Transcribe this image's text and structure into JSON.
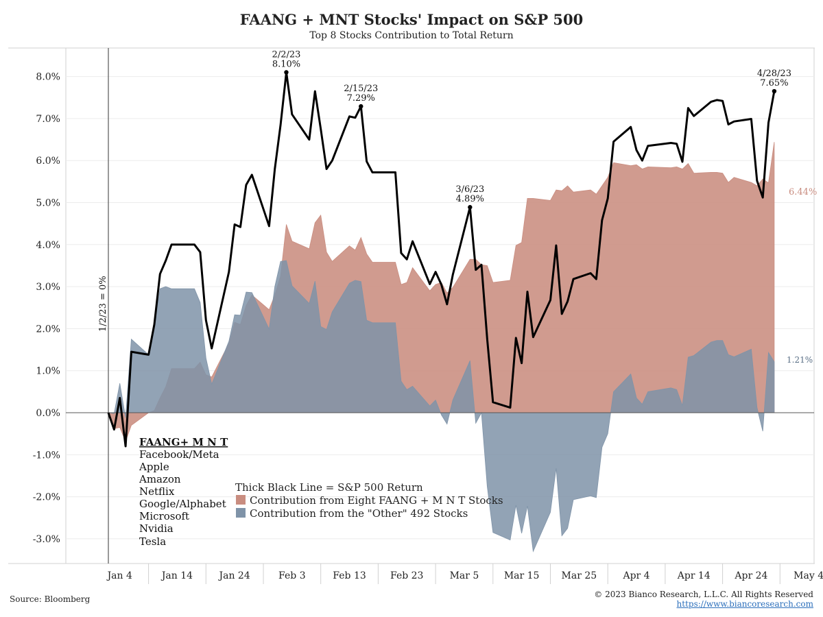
{
  "title": "FAANG + MNT Stocks' Impact on S&P 500",
  "subtitle": "Top 8 Stocks Contribution to Total Return",
  "colors": {
    "faang": "#c98d80",
    "other": "#7f93a8",
    "sp500": "#000000"
  },
  "start_note": "1/2/23 = 0%",
  "stocks_box": {
    "heading": "FAANG+ M N T",
    "items": [
      "Facebook/Meta",
      "Apple",
      "Amazon",
      "Netflix",
      "Google/Alphabet",
      "Microsoft",
      "Nvidia",
      "Tesla"
    ]
  },
  "legend": {
    "line": "Thick Black Line = S&P 500 Return",
    "faang": "Contribution from Eight FAANG + M N T Stocks",
    "other": "Contribution from the \"Other\" 492 Stocks"
  },
  "end_labels": {
    "faang": "6.44%",
    "other": "1.21%"
  },
  "source": "Source: Bloomberg",
  "copyright": "© 2023 Bianco Research, L.L.C. All Rights Reserved",
  "website": "https://www.biancoresearch.com",
  "chart_data": {
    "type": "area",
    "x_ticks": [
      "Jan 4",
      "Jan 14",
      "Jan 24",
      "Feb 3",
      "Feb 13",
      "Feb 23",
      "Mar 5",
      "Mar 15",
      "Mar 25",
      "Apr 4",
      "Apr 14",
      "Apr 24",
      "May 4"
    ],
    "y_ticks": [
      "-3.0%",
      "-2.0%",
      "-1.0%",
      "0.0%",
      "1.0%",
      "2.0%",
      "3.0%",
      "4.0%",
      "5.0%",
      "6.0%",
      "7.0%",
      "8.0%"
    ],
    "ylim": [
      -3.6,
      8.6
    ],
    "x": [
      "1/2/23",
      "1/3/23",
      "1/4/23",
      "1/5/23",
      "1/6/23",
      "1/9/23",
      "1/10/23",
      "1/11/23",
      "1/12/23",
      "1/13/23",
      "1/17/23",
      "1/18/23",
      "1/19/23",
      "1/20/23",
      "1/23/23",
      "1/24/23",
      "1/25/23",
      "1/26/23",
      "1/27/23",
      "1/30/23",
      "1/31/23",
      "2/1/23",
      "2/2/23",
      "2/3/23",
      "2/6/23",
      "2/7/23",
      "2/8/23",
      "2/9/23",
      "2/10/23",
      "2/13/23",
      "2/14/23",
      "2/15/23",
      "2/16/23",
      "2/17/23",
      "2/21/23",
      "2/22/23",
      "2/23/23",
      "2/24/23",
      "2/27/23",
      "2/28/23",
      "3/1/23",
      "3/2/23",
      "3/3/23",
      "3/6/23",
      "3/7/23",
      "3/8/23",
      "3/9/23",
      "3/10/23",
      "3/13/23",
      "3/14/23",
      "3/15/23",
      "3/16/23",
      "3/17/23",
      "3/20/23",
      "3/21/23",
      "3/22/23",
      "3/23/23",
      "3/24/23",
      "3/27/23",
      "3/28/23",
      "3/29/23",
      "3/30/23",
      "3/31/23",
      "4/3/23",
      "4/4/23",
      "4/5/23",
      "4/6/23",
      "4/10/23",
      "4/11/23",
      "4/12/23",
      "4/13/23",
      "4/14/23",
      "4/17/23",
      "4/18/23",
      "4/19/23",
      "4/20/23",
      "4/21/23",
      "4/24/23",
      "4/25/23",
      "4/26/23",
      "4/27/23",
      "4/28/23"
    ],
    "series": [
      {
        "name": "Thick Black Line = S&P 500 Return",
        "values": [
          0.0,
          -0.4,
          0.35,
          -0.8,
          1.45,
          1.38,
          2.1,
          3.3,
          3.62,
          4.0,
          4.0,
          3.82,
          2.2,
          1.53,
          3.35,
          4.48,
          4.42,
          5.42,
          5.66,
          4.44,
          5.8,
          6.85,
          8.1,
          7.1,
          6.5,
          7.65,
          6.75,
          5.8,
          6.0,
          7.05,
          7.02,
          7.29,
          5.98,
          5.72,
          5.72,
          3.8,
          3.65,
          4.08,
          3.06,
          3.35,
          3.05,
          2.58,
          3.28,
          4.89,
          3.4,
          3.52,
          1.75,
          0.25,
          0.12,
          1.78,
          1.18,
          2.88,
          1.8,
          2.68,
          3.98,
          2.35,
          2.65,
          3.18,
          3.32,
          3.18,
          4.58,
          5.1,
          6.45,
          6.8,
          6.25,
          6.0,
          6.35,
          6.42,
          6.4,
          5.97,
          7.25,
          7.06,
          7.4,
          7.44,
          7.42,
          6.86,
          6.93,
          6.99,
          5.52,
          5.12,
          6.9,
          7.65
        ]
      },
      {
        "name": "Contribution from Eight FAANG + M N T Stocks",
        "values": [
          0.0,
          -0.38,
          -0.35,
          -0.68,
          -0.3,
          0.0,
          0.05,
          0.35,
          0.62,
          1.05,
          1.05,
          1.2,
          0.9,
          0.85,
          1.65,
          2.15,
          2.1,
          2.55,
          2.8,
          2.45,
          2.8,
          3.25,
          4.48,
          4.08,
          3.9,
          4.52,
          4.7,
          3.82,
          3.6,
          3.97,
          3.87,
          4.17,
          3.78,
          3.58,
          3.58,
          3.05,
          3.1,
          3.45,
          2.9,
          3.05,
          3.1,
          2.85,
          2.98,
          3.65,
          3.65,
          3.52,
          3.5,
          3.1,
          3.15,
          3.98,
          4.05,
          5.1,
          5.1,
          5.05,
          5.3,
          5.28,
          5.4,
          5.25,
          5.3,
          5.2,
          5.4,
          5.6,
          5.95,
          5.88,
          5.9,
          5.8,
          5.85,
          5.83,
          5.85,
          5.8,
          5.93,
          5.7,
          5.72,
          5.72,
          5.7,
          5.48,
          5.6,
          5.48,
          5.4,
          5.56,
          5.47,
          6.44
        ]
      },
      {
        "name": "Contribution from the \"Other\" 492 Stocks",
        "values": [
          0.0,
          -0.02,
          0.7,
          -0.12,
          1.75,
          1.38,
          2.05,
          2.95,
          3.0,
          2.95,
          2.95,
          2.62,
          1.3,
          0.68,
          1.7,
          2.33,
          2.32,
          2.87,
          2.86,
          1.99,
          3.0,
          3.6,
          3.62,
          3.02,
          2.6,
          3.13,
          2.05,
          1.98,
          2.4,
          3.08,
          3.15,
          3.12,
          2.2,
          2.14,
          2.14,
          0.75,
          0.55,
          0.63,
          0.16,
          0.3,
          -0.05,
          -0.27,
          0.3,
          1.24,
          -0.25,
          0.0,
          -1.75,
          -2.85,
          -3.03,
          -2.2,
          -2.87,
          -2.22,
          -3.3,
          -2.37,
          -1.32,
          -2.93,
          -2.75,
          -2.07,
          -1.98,
          -2.02,
          -0.82,
          -0.5,
          0.5,
          0.92,
          0.35,
          0.2,
          0.5,
          0.59,
          0.55,
          0.17,
          1.32,
          1.36,
          1.68,
          1.72,
          1.72,
          1.38,
          1.33,
          1.51,
          0.12,
          -0.44,
          1.43,
          1.21
        ]
      }
    ],
    "annotations": [
      {
        "date": "2/2/23",
        "value": "8.10%"
      },
      {
        "date": "2/15/23",
        "value": "7.29%"
      },
      {
        "date": "3/6/23",
        "value": "4.89%"
      },
      {
        "date": "4/28/23",
        "value": "7.65%"
      }
    ]
  }
}
